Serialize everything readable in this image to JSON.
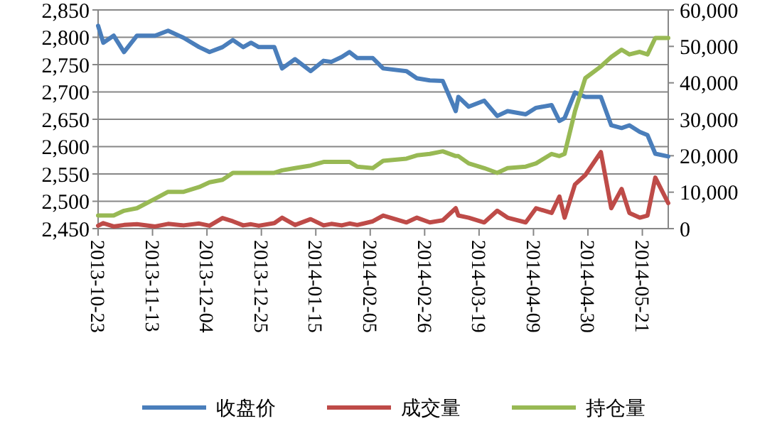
{
  "chart_data": {
    "type": "line",
    "x": [
      "2013-10-23",
      "2013-10-25",
      "2013-10-29",
      "2013-11-02",
      "2013-11-07",
      "2013-11-14",
      "2013-11-19",
      "2013-11-25",
      "2013-12-01",
      "2013-12-05",
      "2013-12-10",
      "2013-12-14",
      "2013-12-18",
      "2013-12-21",
      "2013-12-24",
      "2013-12-30",
      "2014-01-02",
      "2014-01-07",
      "2014-01-13",
      "2014-01-18",
      "2014-01-21",
      "2014-01-25",
      "2014-01-28",
      "2014-01-31",
      "2014-02-06",
      "2014-02-10",
      "2014-02-19",
      "2014-02-23",
      "2014-02-28",
      "2014-03-05",
      "2014-03-10",
      "2014-03-11",
      "2014-03-15",
      "2014-03-21",
      "2014-03-26",
      "2014-03-30",
      "2014-04-06",
      "2014-04-10",
      "2014-04-16",
      "2014-04-19",
      "2014-04-21",
      "2014-04-25",
      "2014-04-29",
      "2014-05-05",
      "2014-05-09",
      "2014-05-13",
      "2014-05-16",
      "2014-05-20",
      "2014-05-23",
      "2014-05-26",
      "2014-05-31"
    ],
    "series": [
      {
        "name": "收盘价",
        "color": "#4a7ebb",
        "values": [
          2821,
          2790,
          2803,
          2773,
          2803,
          2803,
          2812,
          2799,
          2782,
          2773,
          2782,
          2795,
          2782,
          2790,
          2782,
          2782,
          2743,
          2760,
          2738,
          2757,
          2755,
          2764,
          2773,
          2762,
          2762,
          2743,
          2738,
          2725,
          2721,
          2720,
          2665,
          2691,
          2673,
          2684,
          2656,
          2665,
          2659,
          2671,
          2676,
          2647,
          2652,
          2699,
          2691,
          2691,
          2639,
          2634,
          2639,
          2627,
          2621,
          2587,
          2582
        ]
      },
      {
        "name": "成交量",
        "color": "#be4b48",
        "axis": "y2",
        "values": [
          800,
          1500,
          600,
          1000,
          1200,
          600,
          1300,
          900,
          1400,
          800,
          2900,
          2000,
          900,
          1200,
          800,
          1500,
          3000,
          1000,
          2600,
          900,
          1300,
          900,
          1400,
          1000,
          2000,
          3600,
          1700,
          3000,
          1700,
          2300,
          5600,
          3600,
          3000,
          1700,
          4900,
          3000,
          1700,
          5600,
          4300,
          8800,
          3000,
          12100,
          14700,
          21000,
          5600,
          10900,
          4300,
          3000,
          3600,
          14000,
          7000
        ]
      },
      {
        "name": "持仓量",
        "color": "#98b954",
        "axis": "y2",
        "values": [
          3600,
          3600,
          3600,
          4900,
          5600,
          8200,
          10100,
          10100,
          11400,
          12700,
          13400,
          15300,
          15300,
          15300,
          15300,
          15300,
          16000,
          16600,
          17300,
          18300,
          18300,
          18300,
          18300,
          17000,
          16600,
          18600,
          19200,
          20100,
          20500,
          21200,
          19900,
          19900,
          17900,
          16600,
          15300,
          16600,
          17000,
          17900,
          20500,
          19900,
          20500,
          32200,
          41300,
          44500,
          47100,
          49100,
          47800,
          48500,
          47800,
          52300,
          52300
        ]
      }
    ],
    "xlim": [
      "2013-10-23",
      "2014-05-31"
    ],
    "xticks": [
      {
        "value": "2013-10-23",
        "label": "2013-10-23"
      },
      {
        "value": "2013-11-13",
        "label": "2013-11-13"
      },
      {
        "value": "2013-12-04",
        "label": "2013-12-04"
      },
      {
        "value": "2013-12-25",
        "label": "2013-12-25"
      },
      {
        "value": "2014-01-15",
        "label": "2014-01-15"
      },
      {
        "value": "2014-02-05",
        "label": "2014-02-05"
      },
      {
        "value": "2014-02-26",
        "label": "2014-02-26"
      },
      {
        "value": "2014-03-19",
        "label": "2014-03-19"
      },
      {
        "value": "2014-04-09",
        "label": "2014-04-09"
      },
      {
        "value": "2014-04-30",
        "label": "2014-04-30"
      },
      {
        "value": "2014-05-21",
        "label": "2014-05-21"
      }
    ],
    "ylim": [
      2450,
      2850
    ],
    "yticks": [
      {
        "value": 2450,
        "label": "2,450"
      },
      {
        "value": 2500,
        "label": "2,500"
      },
      {
        "value": 2550,
        "label": "2,550"
      },
      {
        "value": 2600,
        "label": "2,600"
      },
      {
        "value": 2650,
        "label": "2,650"
      },
      {
        "value": 2700,
        "label": "2,700"
      },
      {
        "value": 2750,
        "label": "2,750"
      },
      {
        "value": 2800,
        "label": "2,800"
      },
      {
        "value": 2850,
        "label": "2,850"
      }
    ],
    "y2lim": [
      0,
      60000
    ],
    "y2ticks": [
      0,
      {
        "value": 10000,
        "label": "10,000"
      },
      {
        "value": 20000,
        "label": "20,000"
      },
      {
        "value": 30000,
        "label": "30,000"
      },
      {
        "value": 40000,
        "label": "40,000"
      },
      {
        "value": 50000,
        "label": "50,000"
      },
      {
        "value": 60000,
        "label": "60,000"
      }
    ],
    "grid": "y",
    "legend": "bottom",
    "marker": "none",
    "line_style": "solid"
  }
}
